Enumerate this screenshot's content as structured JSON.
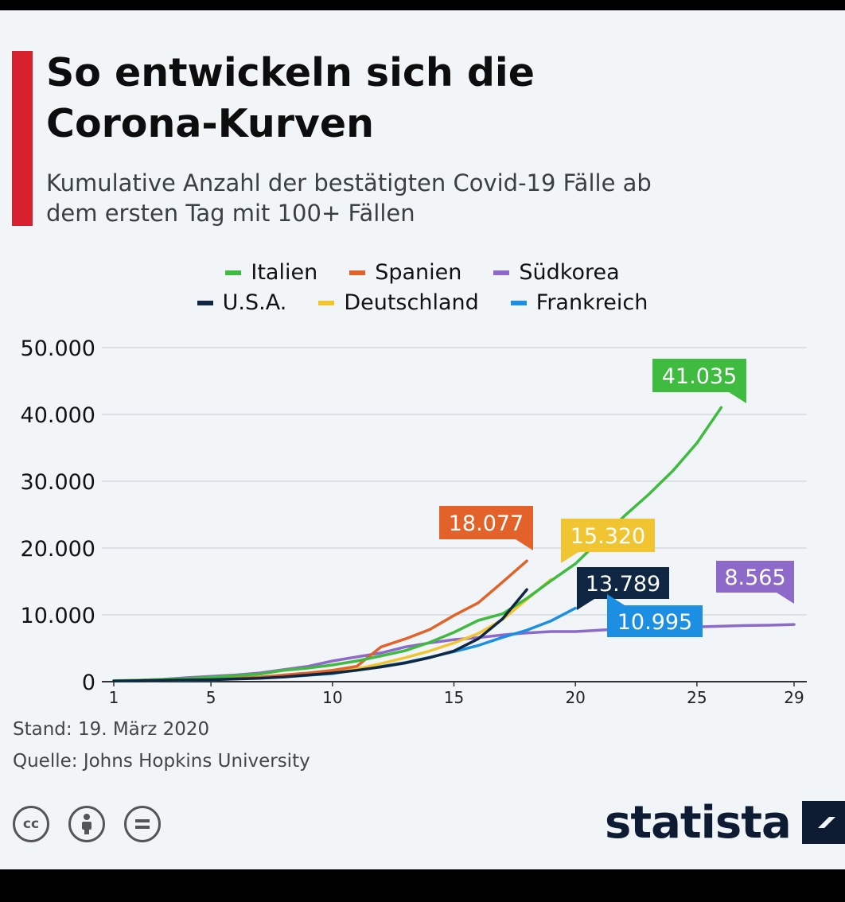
{
  "colors": {
    "accent": "#d8202e",
    "italien": "#3fbb3f",
    "spanien": "#e3622a",
    "suedkorea": "#8d6ac9",
    "usa": "#0f2742",
    "deutschland": "#f0c531",
    "frankreich": "#1c8fe3"
  },
  "header": {
    "title_line1": "So entwickeln sich die",
    "title_line2": "Corona-Kurven",
    "subtitle_line1": "Kumulative Anzahl der bestätigten Covid-19 Fälle ab",
    "subtitle_line2": "dem ersten Tag mit 100+ Fällen"
  },
  "legend": [
    {
      "label": "Italien",
      "color": "#3fbb3f"
    },
    {
      "label": "Spanien",
      "color": "#e3622a"
    },
    {
      "label": "Südkorea",
      "color": "#8d6ac9"
    },
    {
      "label": "U.S.A.",
      "color": "#0f2742"
    },
    {
      "label": "Deutschland",
      "color": "#f0c531"
    },
    {
      "label": "Frankreich",
      "color": "#1c8fe3"
    }
  ],
  "chart_data": {
    "type": "line",
    "title": "So entwickeln sich die Corona-Kurven",
    "subtitle": "Kumulative Anzahl der bestätigten Covid-19 Fälle ab dem ersten Tag mit 100+ Fällen",
    "xlabel": "",
    "ylabel": "",
    "xlim": [
      1,
      29
    ],
    "ylim": [
      0,
      50000
    ],
    "x_ticks": [
      1,
      5,
      10,
      15,
      20,
      25,
      29
    ],
    "y_ticks": [
      0,
      10000,
      20000,
      30000,
      40000,
      50000
    ],
    "y_tick_labels": [
      "0",
      "10.000",
      "20.000",
      "30.000",
      "40.000",
      "50.000"
    ],
    "grid": true,
    "legend_position": "top-center",
    "series": [
      {
        "name": "Italien",
        "color": "#3fbb3f",
        "label": "41.035",
        "x": [
          1,
          2,
          3,
          4,
          5,
          6,
          7,
          8,
          9,
          10,
          11,
          12,
          13,
          14,
          15,
          16,
          17,
          18,
          19,
          20,
          21,
          22,
          23,
          24,
          25,
          26
        ],
        "values": [
          150,
          220,
          320,
          450,
          650,
          890,
          1130,
          1700,
          2040,
          2500,
          3100,
          3860,
          4640,
          5880,
          7380,
          9170,
          10150,
          12460,
          15110,
          17660,
          21160,
          24750,
          27980,
          31510,
          35710,
          41035
        ]
      },
      {
        "name": "Spanien",
        "color": "#e3622a",
        "label": "18.077",
        "x": [
          1,
          2,
          3,
          4,
          5,
          6,
          7,
          8,
          9,
          10,
          11,
          12,
          13,
          14,
          15,
          16,
          17,
          18
        ],
        "values": [
          120,
          170,
          230,
          300,
          400,
          500,
          670,
          1000,
          1300,
          1700,
          2300,
          5200,
          6400,
          7800,
          9900,
          11800,
          14900,
          18077
        ]
      },
      {
        "name": "Südkorea",
        "color": "#8d6ac9",
        "label": "8.565",
        "x": [
          1,
          2,
          3,
          4,
          5,
          6,
          7,
          8,
          9,
          10,
          11,
          12,
          13,
          14,
          15,
          16,
          17,
          18,
          19,
          20,
          21,
          22,
          23,
          24,
          25,
          26,
          27,
          28,
          29
        ],
        "values": [
          100,
          200,
          350,
          600,
          800,
          1000,
          1300,
          1800,
          2300,
          3100,
          3700,
          4300,
          5200,
          5800,
          6300,
          6600,
          7000,
          7300,
          7500,
          7500,
          7700,
          7900,
          8000,
          8100,
          8200,
          8300,
          8400,
          8450,
          8565
        ]
      },
      {
        "name": "U.S.A.",
        "color": "#0f2742",
        "label": "13.789",
        "x": [
          1,
          2,
          3,
          4,
          5,
          6,
          7,
          8,
          9,
          10,
          11,
          12,
          13,
          14,
          15,
          16,
          17,
          18
        ],
        "values": [
          100,
          150,
          200,
          250,
          300,
          400,
          500,
          700,
          1000,
          1300,
          1700,
          2200,
          2800,
          3600,
          4600,
          6400,
          9400,
          13789
        ]
      },
      {
        "name": "Deutschland",
        "color": "#f0c531",
        "label": "15.320",
        "x": [
          1,
          2,
          3,
          4,
          5,
          6,
          7,
          8,
          9,
          10,
          11,
          12,
          13,
          14,
          15,
          16,
          17,
          18,
          19
        ],
        "values": [
          120,
          160,
          200,
          260,
          400,
          540,
          680,
          900,
          1200,
          1500,
          1900,
          2700,
          3600,
          4600,
          5800,
          7200,
          9300,
          12300,
          15320
        ]
      },
      {
        "name": "Frankreich",
        "color": "#1c8fe3",
        "label": "10.995",
        "x": [
          1,
          2,
          3,
          4,
          5,
          6,
          7,
          8,
          9,
          10,
          11,
          12,
          13,
          14,
          15,
          16,
          17,
          18,
          19,
          20
        ],
        "values": [
          100,
          130,
          190,
          210,
          280,
          420,
          610,
          710,
          950,
          1200,
          1780,
          2280,
          2870,
          3660,
          4490,
          5420,
          6630,
          7700,
          9100,
          10995
        ]
      }
    ]
  },
  "footer": {
    "stand": "Stand: 19. März 2020",
    "quelle": "Quelle: Johns Hopkins University",
    "logo": "statista",
    "icons": [
      "cc-icon",
      "attribution-icon",
      "no-derivatives-icon"
    ]
  }
}
